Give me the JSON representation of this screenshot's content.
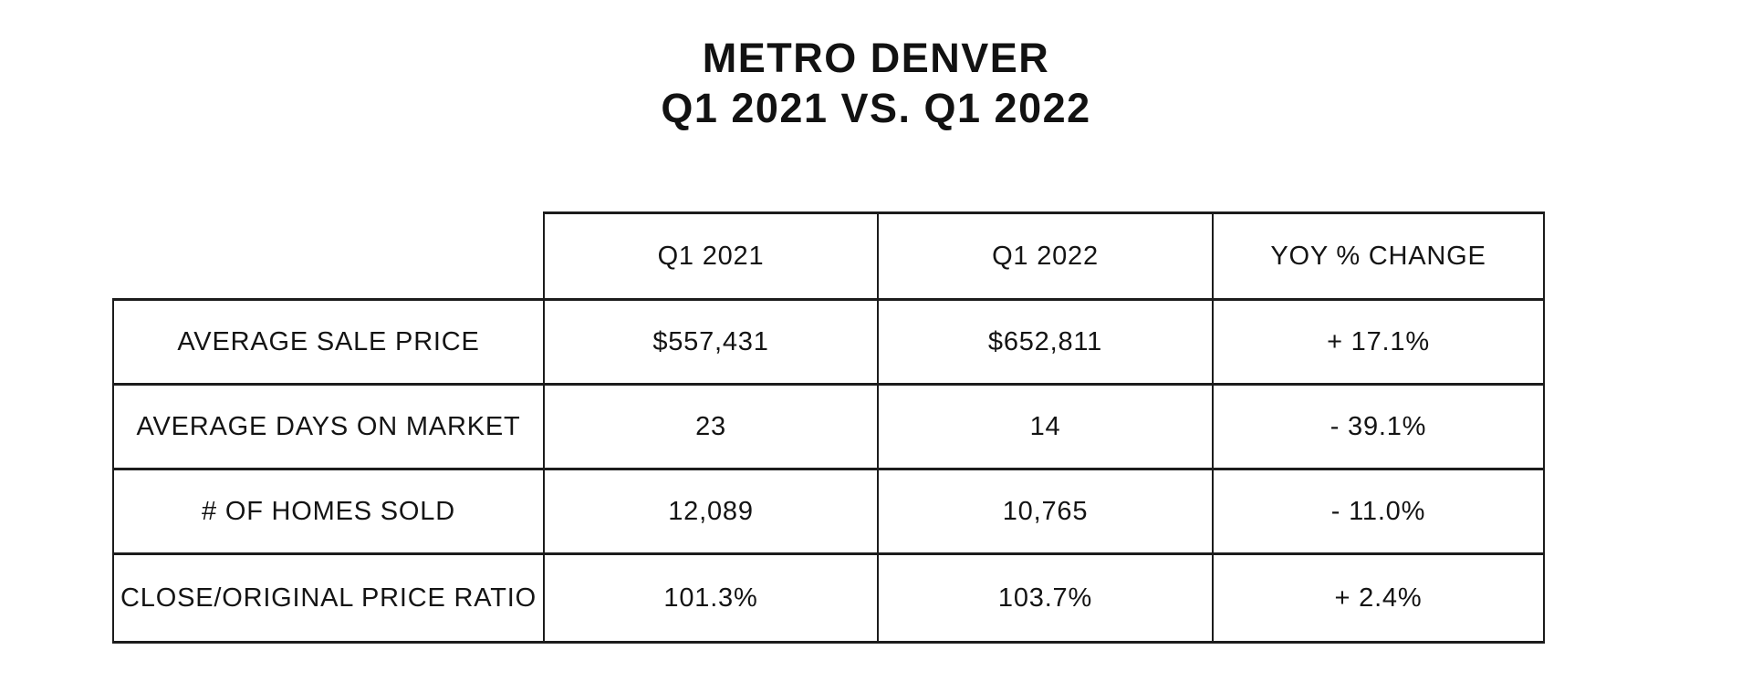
{
  "title": {
    "line1": "METRO DENVER",
    "line2": "Q1 2021 VS. Q1 2022"
  },
  "table": {
    "column_headers": [
      "Q1 2021",
      "Q1 2022",
      "YOY % CHANGE"
    ],
    "rows": [
      {
        "label": "AVERAGE SALE PRICE",
        "q1_2021": "$557,431",
        "q1_2022": "$652,811",
        "yoy": "+ 17.1%"
      },
      {
        "label": "AVERAGE DAYS ON MARKET",
        "q1_2021": "23",
        "q1_2022": "14",
        "yoy": "- 39.1%"
      },
      {
        "label": "# OF HOMES SOLD",
        "q1_2021": "12,089",
        "q1_2022": "10,765",
        "yoy": "- 11.0%"
      },
      {
        "label": "CLOSE/ORIGINAL PRICE RATIO",
        "q1_2021": "101.3%",
        "q1_2022": "103.7%",
        "yoy": "+ 2.4%"
      }
    ]
  },
  "colors": {
    "background": "#ffffff",
    "text": "#141414",
    "border": "#1c1c1c"
  },
  "chart_data": {
    "type": "table",
    "title": "METRO DENVER Q1 2021 VS. Q1 2022",
    "columns": [
      "",
      "Q1 2021",
      "Q1 2022",
      "YOY % CHANGE"
    ],
    "rows": [
      [
        "AVERAGE SALE PRICE",
        "$557,431",
        "$652,811",
        "+ 17.1%"
      ],
      [
        "AVERAGE DAYS ON MARKET",
        "23",
        "14",
        "- 39.1%"
      ],
      [
        "# OF HOMES SOLD",
        "12,089",
        "10,765",
        "- 11.0%"
      ],
      [
        "CLOSE/ORIGINAL PRICE RATIO",
        "101.3%",
        "103.7%",
        "+ 2.4%"
      ]
    ],
    "numeric": {
      "average_sale_price": {
        "q1_2021": 557431,
        "q1_2022": 652811,
        "yoy_pct_change": 17.1
      },
      "average_days_on_market": {
        "q1_2021": 23,
        "q1_2022": 14,
        "yoy_pct_change": -39.1
      },
      "homes_sold": {
        "q1_2021": 12089,
        "q1_2022": 10765,
        "yoy_pct_change": -11.0
      },
      "close_original_price_ratio_pct": {
        "q1_2021": 101.3,
        "q1_2022": 103.7,
        "yoy_pct_change": 2.4
      }
    }
  }
}
